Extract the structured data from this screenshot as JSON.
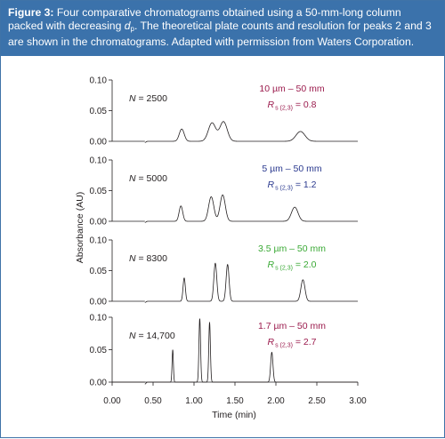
{
  "caption": {
    "figure_label": "Figure 3:",
    "text_before_dp": " Four comparative chromatograms obtained using a 50-mm-long column packed with decreasing ",
    "dp_symbol": "d",
    "dp_subscript": "p",
    "text_after_dp": ". The theoretical plate counts and resolution for peaks 2 and 3 are shown in the chromatograms. Adapted with permission from Waters Corporation."
  },
  "colors": {
    "caption_bg": "#3b72ab",
    "trace": "#231f20",
    "panel_1": "#9b1b4d",
    "panel_2": "#2b3a8f",
    "panel_3": "#3aa935",
    "panel_4": "#9b1b4d"
  },
  "chart_data": {
    "type": "line",
    "xlabel": "Time (min)",
    "ylabel": "Absorbance (AU)",
    "xlim": [
      0.0,
      3.0
    ],
    "x_ticks": [
      "0.00",
      "0.50",
      "1.00",
      "1.50",
      "2.00",
      "2.50",
      "3.00"
    ],
    "y_ticks": [
      "0.00",
      "0.05",
      "0.10"
    ],
    "grid": false,
    "panels": [
      {
        "plate_count_prefix": "N",
        "plate_count_value": " = 2500",
        "column": "10 µm – 50 mm",
        "res_symbol": "R",
        "res_subscript": "s (2,3)",
        "res_value": " = 0.8",
        "ylim": [
          0.0,
          0.1
        ],
        "baseline_dip": {
          "time": 0.4,
          "depth": 0.002
        },
        "peaks": [
          {
            "time": 0.85,
            "height": 0.02,
            "width": 0.03
          },
          {
            "time": 1.22,
            "height": 0.03,
            "width": 0.045
          },
          {
            "time": 1.36,
            "height": 0.032,
            "width": 0.045
          },
          {
            "time": 2.3,
            "height": 0.016,
            "width": 0.055
          }
        ]
      },
      {
        "plate_count_prefix": "N",
        "plate_count_value": " = 5000",
        "column": "5 µm – 50 mm",
        "res_symbol": "R",
        "res_subscript": "s (2,3)",
        "res_value": " = 1.2",
        "ylim": [
          0.0,
          0.1
        ],
        "baseline_dip": {
          "time": 0.4,
          "depth": 0.002
        },
        "peaks": [
          {
            "time": 0.84,
            "height": 0.025,
            "width": 0.022
          },
          {
            "time": 1.21,
            "height": 0.04,
            "width": 0.032
          },
          {
            "time": 1.35,
            "height": 0.043,
            "width": 0.032
          },
          {
            "time": 2.23,
            "height": 0.023,
            "width": 0.04
          }
        ]
      },
      {
        "plate_count_prefix": "N",
        "plate_count_value": " = 8300",
        "column": "3.5 µm – 50 mm",
        "res_symbol": "R",
        "res_subscript": "s (2,3)",
        "res_value": " = 2.0",
        "ylim": [
          0.0,
          0.1
        ],
        "baseline_dip": {
          "time": 0.4,
          "depth": 0.002
        },
        "peaks": [
          {
            "time": 0.88,
            "height": 0.038,
            "width": 0.014
          },
          {
            "time": 1.26,
            "height": 0.062,
            "width": 0.018
          },
          {
            "time": 1.41,
            "height": 0.06,
            "width": 0.018
          },
          {
            "time": 2.33,
            "height": 0.035,
            "width": 0.025
          }
        ]
      },
      {
        "plate_count_prefix": "N",
        "plate_count_value": " = 14,700",
        "column": "1.7 µm – 50 mm",
        "res_symbol": "R",
        "res_subscript": "s (2,3)",
        "res_value": " = 2.7",
        "ylim": [
          0.0,
          0.1
        ],
        "baseline_dip": {
          "time": 0.4,
          "depth": 0.003
        },
        "peaks": [
          {
            "time": 0.74,
            "height": 0.05,
            "width": 0.008
          },
          {
            "time": 1.07,
            "height": 0.098,
            "width": 0.01
          },
          {
            "time": 1.19,
            "height": 0.092,
            "width": 0.01
          },
          {
            "time": 1.95,
            "height": 0.046,
            "width": 0.014
          }
        ]
      }
    ]
  }
}
